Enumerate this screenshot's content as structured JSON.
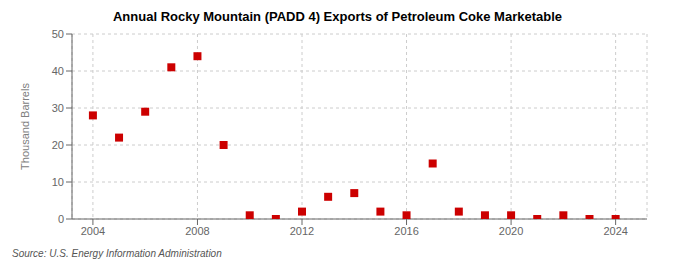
{
  "chart_data": {
    "type": "scatter",
    "title": "Annual Rocky Mountain (PADD 4) Exports of Petroleum Coke Marketable",
    "y_label": "Thousand Barrels",
    "annotations": [
      "Source: U.S. Energy Information Administration"
    ],
    "x": [
      2004,
      2005,
      2006,
      2007,
      2008,
      2009,
      2010,
      2011,
      2012,
      2013,
      2014,
      2015,
      2016,
      2017,
      2018,
      2019,
      2020,
      2021,
      2022,
      2023,
      2024
    ],
    "values": [
      28,
      22,
      29,
      41,
      44,
      20,
      1,
      0,
      2,
      6,
      7,
      2,
      1,
      15,
      2,
      1,
      1,
      0,
      1,
      0,
      0
    ],
    "color": "#cc0000",
    "marker": "square",
    "xlim": [
      2003.2,
      2025.2
    ],
    "ylim": [
      0,
      50
    ],
    "xticks": [
      2004,
      2008,
      2012,
      2016,
      2020,
      2024
    ],
    "yticks": [
      0,
      10,
      20,
      30,
      40,
      50
    ],
    "grid": true
  }
}
